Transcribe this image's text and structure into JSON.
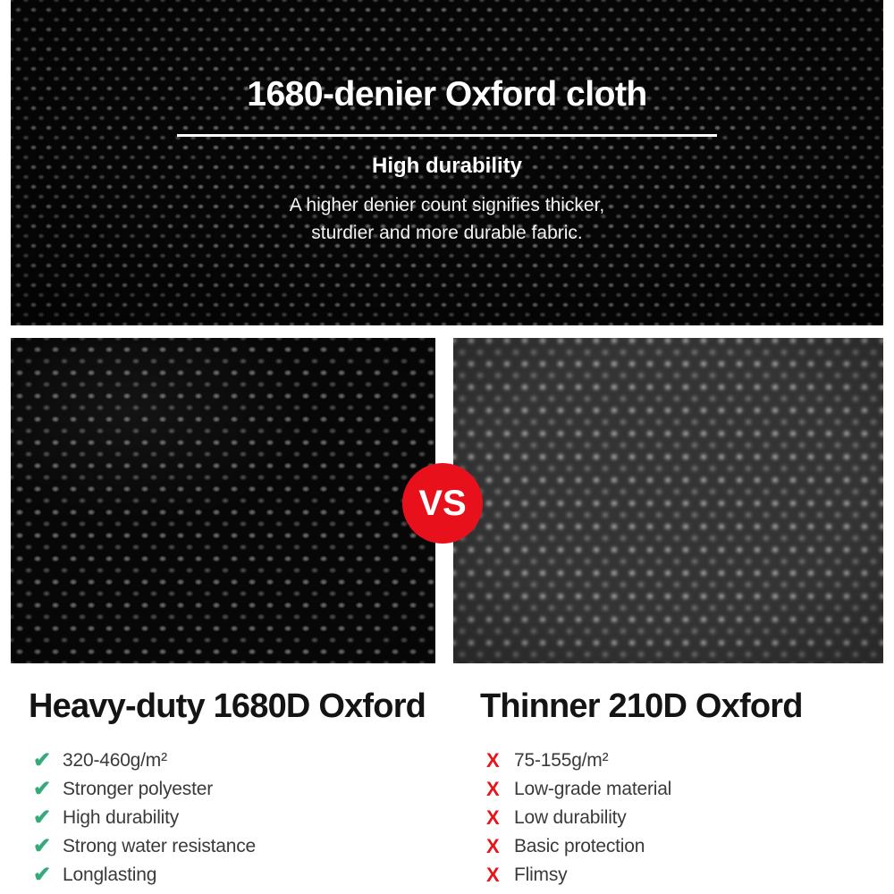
{
  "hero": {
    "title": "1680-denier Oxford cloth",
    "subtitle": "High durability",
    "description_line1": "A higher denier count signifies thicker,",
    "description_line2": "sturdier and more durable fabric."
  },
  "vs_badge": {
    "label": "VS",
    "color": "#e8111b"
  },
  "comparison": {
    "left": {
      "heading": "Heavy-duty 1680D Oxford",
      "marker": "✔",
      "marker_color": "#35aa7c",
      "items": [
        "320-460g/m²",
        "Stronger polyester",
        "High durability",
        "Strong water resistance",
        "Longlasting"
      ]
    },
    "right": {
      "heading": "Thinner 210D Oxford",
      "marker": "X",
      "marker_color": "#e8131b",
      "items": [
        "75-155g/m²",
        "Low-grade material",
        "Low durability",
        "Basic protection",
        "Flimsy"
      ]
    }
  }
}
